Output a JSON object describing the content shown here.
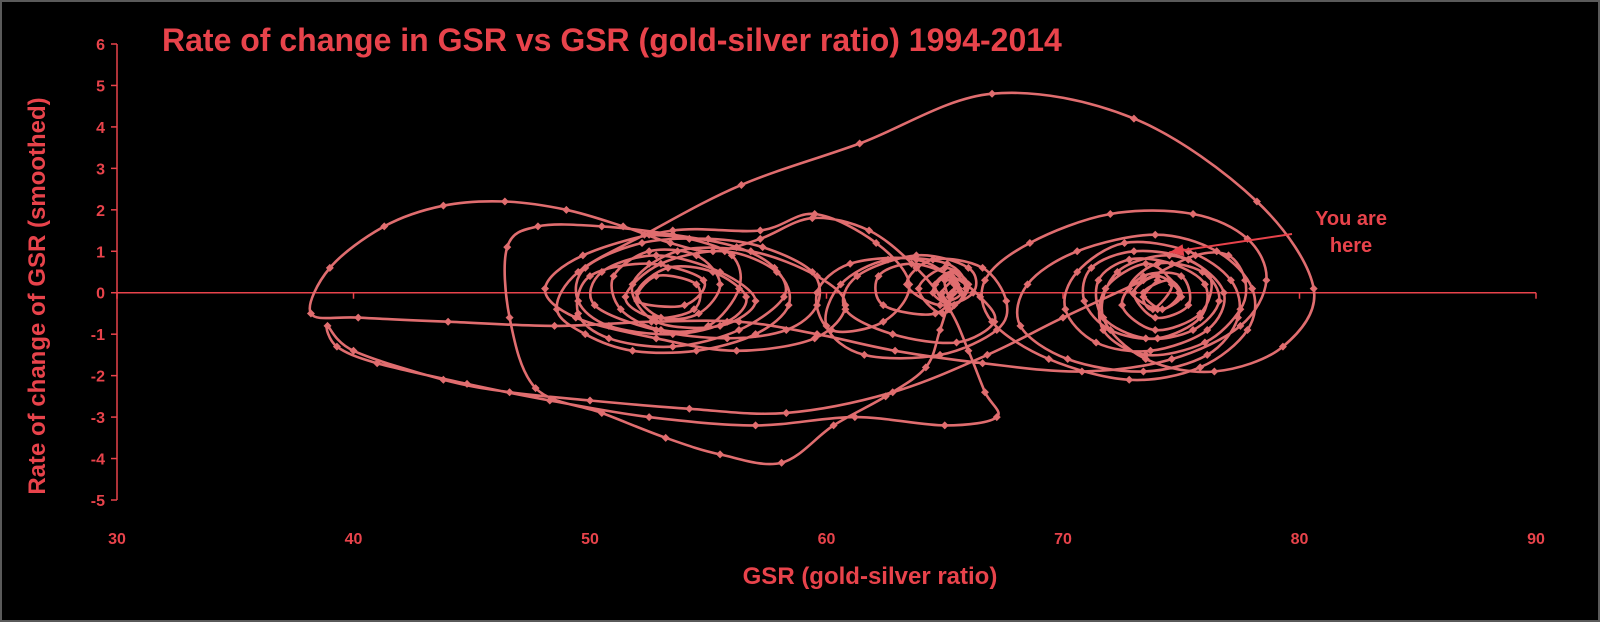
{
  "chart_data": {
    "type": "scatter",
    "title": "Rate of change in GSR vs GSR (gold-silver ratio) 1994-2014",
    "xlabel": "GSR (gold-silver ratio)",
    "ylabel": "Rate of change of GSR (smoothed)",
    "xlim": [
      30,
      90
    ],
    "ylim": [
      -5,
      6
    ],
    "xticks": [
      "30",
      "40",
      "50",
      "60",
      "70",
      "80",
      "90"
    ],
    "yticks": [
      "6",
      "5",
      "4",
      "3",
      "2",
      "1",
      "0",
      "-1",
      "-2",
      "-3",
      "-4",
      "-5"
    ],
    "grid": false,
    "line_color": "#e06d6f",
    "text_color": "#e8434b",
    "annotation": {
      "text_line1": "You are",
      "text_line2": "here",
      "x": 74,
      "y": 1.0
    },
    "series": [
      {
        "points": [
          [
            52.5,
            1.4
          ],
          [
            54.2,
            1.3
          ],
          [
            56.0,
            0.9
          ],
          [
            56.3,
            0.1
          ],
          [
            55.0,
            -0.8
          ],
          [
            53.0,
            -0.9
          ],
          [
            51.3,
            -0.4
          ],
          [
            51.0,
            0.4
          ],
          [
            52.5,
            1.0
          ],
          [
            54.5,
            0.9
          ],
          [
            55.5,
            0.2
          ],
          [
            54.6,
            -0.5
          ],
          [
            53.0,
            -0.6
          ],
          [
            52.0,
            0.0
          ],
          [
            53.3,
            0.6
          ],
          [
            55.2,
            0.5
          ],
          [
            56.6,
            -0.1
          ],
          [
            55.8,
            -0.7
          ],
          [
            53.5,
            -1.0
          ],
          [
            50.8,
            -0.8
          ],
          [
            49.5,
            -0.2
          ],
          [
            49.8,
            0.6
          ],
          [
            52.2,
            1.2
          ],
          [
            55.0,
            1.3
          ],
          [
            57.3,
            1.1
          ],
          [
            59.4,
            0.5
          ],
          [
            59.6,
            -0.3
          ],
          [
            58.3,
            -0.9
          ],
          [
            55.8,
            -1.1
          ],
          [
            52.8,
            -0.9
          ],
          [
            50.2,
            -0.3
          ],
          [
            50.5,
            0.5
          ],
          [
            52.8,
            0.9
          ],
          [
            55.5,
            0.5
          ],
          [
            57.0,
            -0.2
          ],
          [
            55.5,
            -0.8
          ],
          [
            52.8,
            -0.7
          ],
          [
            51.8,
            0.2
          ],
          [
            53.7,
            1.0
          ],
          [
            56.8,
            1.0
          ],
          [
            59.6,
            0.4
          ],
          [
            60.8,
            -0.3
          ],
          [
            59.5,
            -1.1
          ],
          [
            56.2,
            -1.4
          ],
          [
            52.8,
            -1.1
          ],
          [
            49.4,
            -0.6
          ],
          [
            48.1,
            0.1
          ],
          [
            49.7,
            0.9
          ],
          [
            53.5,
            1.5
          ],
          [
            57.2,
            1.5
          ],
          [
            59.5,
            1.9
          ],
          [
            62.1,
            1.2
          ],
          [
            63.5,
            0.2
          ],
          [
            62.4,
            -0.7
          ],
          [
            60.2,
            -0.9
          ],
          [
            59.6,
            0.0
          ],
          [
            61.0,
            0.7
          ],
          [
            63.8,
            0.8
          ],
          [
            65.4,
            0.2
          ],
          [
            64.6,
            -0.5
          ],
          [
            62.4,
            -0.3
          ],
          [
            62.2,
            0.4
          ],
          [
            63.6,
            0.7
          ],
          [
            65.3,
            0.4
          ],
          [
            66.5,
            -0.1
          ],
          [
            67.1,
            -0.7
          ],
          [
            65.5,
            -1.2
          ],
          [
            62.8,
            -1.0
          ],
          [
            60.8,
            -0.4
          ],
          [
            61.3,
            0.4
          ],
          [
            63.8,
            0.9
          ],
          [
            66.0,
            0.6
          ],
          [
            66.2,
            0.0
          ],
          [
            64.8,
            -0.3
          ],
          [
            63.4,
            0.2
          ],
          [
            64.5,
            0.8
          ],
          [
            66.6,
            0.6
          ],
          [
            67.6,
            -0.2
          ],
          [
            67.2,
            -0.9
          ],
          [
            64.8,
            -1.5
          ],
          [
            61.6,
            -1.5
          ],
          [
            60.0,
            -0.8
          ],
          [
            60.6,
            0.2
          ],
          [
            62.6,
            0.8
          ],
          [
            65.1,
            0.7
          ],
          [
            65.9,
            0.1
          ],
          [
            64.9,
            -0.5
          ],
          [
            63.9,
            0.1
          ],
          [
            65.0,
            0.6
          ],
          [
            66.0,
            0.2
          ],
          [
            65.4,
            -0.3
          ],
          [
            64.5,
            0.0
          ],
          [
            65.1,
            0.4
          ],
          [
            65.7,
            0.0
          ],
          [
            65.0,
            -0.2
          ],
          [
            64.6,
            0.2
          ],
          [
            65.3,
            0.5
          ],
          [
            65.9,
            0.1
          ],
          [
            65.4,
            -0.3
          ],
          [
            64.9,
            0.0
          ],
          [
            65.4,
            0.3
          ],
          [
            65.6,
            0.1
          ],
          [
            65.2,
            -0.1
          ],
          [
            65.0,
            0.3
          ],
          [
            65.5,
            0.2
          ],
          [
            65.3,
            0.0
          ],
          [
            64.8,
            -0.9
          ],
          [
            64.2,
            -1.8
          ],
          [
            62.5,
            -2.5
          ],
          [
            60.3,
            -3.2
          ],
          [
            58.1,
            -4.1
          ],
          [
            55.5,
            -3.9
          ],
          [
            53.2,
            -3.5
          ],
          [
            50.5,
            -2.9
          ],
          [
            47.7,
            -2.3
          ],
          [
            46.6,
            -0.6
          ],
          [
            46.5,
            1.1
          ],
          [
            47.8,
            1.6
          ],
          [
            50.5,
            1.6
          ],
          [
            53.5,
            1.4
          ],
          [
            56.2,
            1.1
          ],
          [
            57.8,
            0.6
          ],
          [
            58.2,
            -0.1
          ],
          [
            56.3,
            -0.9
          ],
          [
            53.5,
            -1.3
          ],
          [
            50.8,
            -1.1
          ],
          [
            49.5,
            -0.5
          ],
          [
            50.0,
            0.4
          ],
          [
            52.5,
            0.7
          ],
          [
            54.8,
            0.3
          ],
          [
            54.0,
            -0.3
          ],
          [
            52.0,
            -0.2
          ],
          [
            52.8,
            0.4
          ],
          [
            54.5,
            0.2
          ],
          [
            54.4,
            -0.4
          ],
          [
            52.7,
            -0.6
          ],
          [
            51.5,
            -0.1
          ],
          [
            53.0,
            0.7
          ],
          [
            55.7,
            1.0
          ],
          [
            57.9,
            0.5
          ],
          [
            58.4,
            -0.3
          ],
          [
            57.0,
            -1.0
          ],
          [
            54.5,
            -1.4
          ],
          [
            51.8,
            -1.4
          ],
          [
            49.8,
            -1.0
          ],
          [
            48.6,
            -0.4
          ],
          [
            49.5,
            0.5
          ],
          [
            52.3,
            1.4
          ],
          [
            56.4,
            2.6
          ],
          [
            61.4,
            3.6
          ],
          [
            67.0,
            4.8
          ],
          [
            73.0,
            4.2
          ],
          [
            78.2,
            2.2
          ],
          [
            80.6,
            0.1
          ],
          [
            79.3,
            -1.3
          ],
          [
            76.4,
            -1.9
          ],
          [
            73.5,
            -1.6
          ],
          [
            71.7,
            -0.6
          ],
          [
            72.3,
            0.5
          ],
          [
            74.5,
            0.9
          ],
          [
            76.2,
            0.4
          ],
          [
            75.8,
            -0.5
          ],
          [
            73.9,
            -0.9
          ],
          [
            72.5,
            -0.3
          ],
          [
            73.4,
            0.4
          ],
          [
            75.0,
            0.4
          ],
          [
            75.3,
            -0.3
          ],
          [
            73.9,
            -0.6
          ],
          [
            73.0,
            0.0
          ],
          [
            74.0,
            0.4
          ],
          [
            74.9,
            0.0
          ],
          [
            74.2,
            -0.4
          ],
          [
            73.4,
            0.0
          ],
          [
            74.5,
            0.3
          ],
          [
            75.0,
            -0.1
          ],
          [
            74.0,
            -0.4
          ],
          [
            72.8,
            0.1
          ],
          [
            74.0,
            0.7
          ],
          [
            75.9,
            0.5
          ],
          [
            76.6,
            -0.2
          ],
          [
            75.5,
            -0.9
          ],
          [
            73.5,
            -1.1
          ],
          [
            71.7,
            -0.6
          ],
          [
            71.5,
            0.3
          ],
          [
            72.8,
            0.8
          ],
          [
            74.6,
            0.7
          ],
          [
            76.0,
            0.2
          ],
          [
            75.8,
            -0.6
          ],
          [
            74.0,
            -1.1
          ],
          [
            72.0,
            -0.9
          ],
          [
            70.9,
            -0.2
          ],
          [
            71.2,
            0.6
          ],
          [
            73.0,
            1.0
          ],
          [
            75.3,
            0.8
          ],
          [
            76.8,
            0.0
          ],
          [
            76.1,
            -0.9
          ],
          [
            73.7,
            -1.4
          ],
          [
            71.4,
            -1.2
          ],
          [
            70.1,
            -0.4
          ],
          [
            70.6,
            0.5
          ],
          [
            72.6,
            1.2
          ],
          [
            75.3,
            1.0
          ],
          [
            77.1,
            0.3
          ],
          [
            77.4,
            -0.6
          ],
          [
            76.1,
            -1.5
          ],
          [
            73.4,
            -1.9
          ],
          [
            70.2,
            -1.6
          ],
          [
            68.2,
            -0.8
          ],
          [
            68.5,
            0.2
          ],
          [
            70.6,
            1.0
          ],
          [
            73.9,
            1.4
          ],
          [
            76.5,
            1.0
          ],
          [
            78.0,
            0.1
          ],
          [
            77.8,
            -0.9
          ],
          [
            75.8,
            -1.8
          ],
          [
            72.8,
            -2.1
          ],
          [
            69.4,
            -1.6
          ],
          [
            67.0,
            -0.7
          ],
          [
            66.7,
            0.3
          ],
          [
            68.6,
            1.2
          ],
          [
            72.0,
            1.9
          ],
          [
            75.5,
            1.9
          ],
          [
            77.8,
            1.3
          ],
          [
            78.6,
            0.3
          ],
          [
            77.5,
            -0.8
          ],
          [
            74.6,
            -1.6
          ],
          [
            70.8,
            -1.9
          ],
          [
            66.6,
            -1.7
          ],
          [
            62.9,
            -1.4
          ],
          [
            59.6,
            -1.0
          ],
          [
            56.3,
            -0.7
          ],
          [
            52.6,
            -0.7
          ],
          [
            48.5,
            -0.8
          ],
          [
            44.0,
            -0.7
          ],
          [
            40.2,
            -0.6
          ],
          [
            38.2,
            -0.5
          ],
          [
            39.0,
            0.6
          ],
          [
            41.3,
            1.6
          ],
          [
            43.8,
            2.1
          ],
          [
            46.4,
            2.2
          ],
          [
            49.0,
            2.0
          ],
          [
            51.4,
            1.6
          ],
          [
            53.4,
            1.2
          ],
          [
            55.2,
            1.0
          ],
          [
            57.2,
            1.3
          ],
          [
            59.4,
            1.8
          ],
          [
            61.8,
            1.5
          ],
          [
            63.8,
            0.6
          ],
          [
            65.2,
            -0.4
          ],
          [
            66.0,
            -1.4
          ],
          [
            66.7,
            -2.4
          ],
          [
            67.2,
            -3.0
          ],
          [
            65.0,
            -3.2
          ],
          [
            61.2,
            -3.0
          ],
          [
            57.0,
            -3.2
          ],
          [
            52.5,
            -3.0
          ],
          [
            48.3,
            -2.6
          ],
          [
            44.8,
            -2.2
          ],
          [
            41.0,
            -1.7
          ],
          [
            39.3,
            -1.3
          ],
          [
            38.9,
            -0.8
          ],
          [
            40.0,
            -1.4
          ],
          [
            43.8,
            -2.1
          ],
          [
            46.6,
            -2.4
          ],
          [
            50.0,
            -2.6
          ],
          [
            54.2,
            -2.8
          ],
          [
            58.3,
            -2.9
          ],
          [
            62.8,
            -2.4
          ],
          [
            66.8,
            -1.5
          ],
          [
            70.0,
            -0.6
          ],
          [
            73.4,
            0.3
          ],
          [
            75.6,
            0.9
          ],
          [
            77.0,
            0.9
          ],
          [
            77.7,
            0.3
          ],
          [
            77.5,
            -0.4
          ],
          [
            76.0,
            -1.2
          ],
          [
            73.5,
            -1.5
          ],
          [
            71.7,
            -0.9
          ],
          [
            71.8,
            0.1
          ],
          [
            73.5,
            0.7
          ],
          [
            74.6,
            0.2
          ],
          [
            73.8,
            -0.4
          ],
          [
            73.4,
            -0.1
          ],
          [
            74.0,
            0.3
          ]
        ]
      }
    ]
  }
}
